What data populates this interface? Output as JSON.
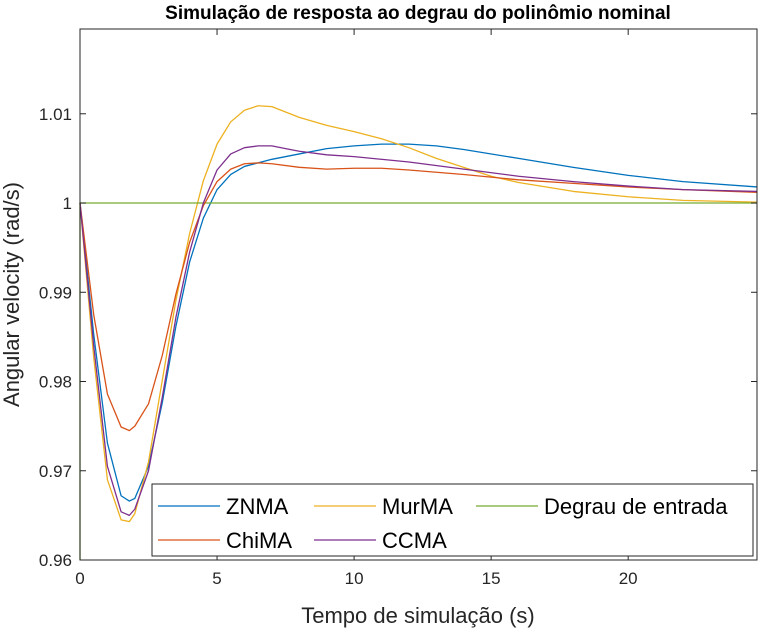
{
  "chart_data": {
    "type": "line",
    "title": "Simulação de resposta ao degrau do polinômio nominal",
    "xlabel": "Tempo de simulação (s)",
    "ylabel": "Angular velocity (rad/s)",
    "xlim": [
      0,
      24.7
    ],
    "ylim": [
      0.96,
      1.0195
    ],
    "xticks": [
      0,
      5,
      10,
      15,
      20
    ],
    "xtick_labels": [
      "0",
      "5",
      "10",
      "15",
      "20"
    ],
    "yticks": [
      0.96,
      0.97,
      0.98,
      0.99,
      1.0,
      1.01
    ],
    "ytick_labels": [
      "0.96",
      "0.97",
      "0.98",
      "0.99",
      "1",
      "1.01"
    ],
    "grid": false,
    "legend_position": "bottom-right",
    "series": [
      {
        "name": "ZNMA",
        "color": "#0072BD",
        "x": [
          0,
          0.5,
          1.0,
          1.5,
          1.8,
          2.0,
          2.5,
          3.0,
          3.5,
          4.0,
          4.5,
          5.0,
          5.5,
          6.0,
          7.0,
          8.0,
          9.0,
          10.0,
          11.0,
          12.0,
          13.0,
          14.0,
          16.0,
          18.0,
          20.0,
          22.0,
          24.7
        ],
        "y": [
          1.0,
          0.9853,
          0.9731,
          0.9672,
          0.9666,
          0.9669,
          0.9705,
          0.9776,
          0.9862,
          0.9934,
          0.9983,
          1.0015,
          1.0032,
          1.0041,
          1.0049,
          1.0055,
          1.0061,
          1.0064,
          1.0066,
          1.0066,
          1.0064,
          1.006,
          1.005,
          1.004,
          1.0031,
          1.0024,
          1.0018
        ]
      },
      {
        "name": "MurMA",
        "color": "#EDB120",
        "x": [
          0,
          0.5,
          1.0,
          1.5,
          1.8,
          2.0,
          2.5,
          3.0,
          3.5,
          4.0,
          4.5,
          5.0,
          5.5,
          6.0,
          6.5,
          7.0,
          7.5,
          8.0,
          9.0,
          10.0,
          11.0,
          12.0,
          13.0,
          14.0,
          15.0,
          16.0,
          18.0,
          20.0,
          22.0,
          24.7
        ],
        "y": [
          1.0,
          0.9827,
          0.969,
          0.9645,
          0.9643,
          0.9652,
          0.971,
          0.9801,
          0.9891,
          0.9966,
          1.0025,
          1.0066,
          1.0091,
          1.0104,
          1.0109,
          1.0108,
          1.0102,
          1.0096,
          1.0087,
          1.008,
          1.0072,
          1.0062,
          1.005,
          1.004,
          1.003,
          1.0023,
          1.0013,
          1.0007,
          1.0003,
          1.0001
        ]
      },
      {
        "name": "Degrau de entrada",
        "color": "#77AC30",
        "x": [
          0,
          0,
          24.7
        ],
        "y": [
          0.96,
          1.0,
          1.0
        ]
      },
      {
        "name": "ChiMA",
        "color": "#D95319",
        "x": [
          0,
          0.5,
          1.0,
          1.5,
          1.8,
          2.0,
          2.5,
          3.0,
          3.5,
          4.0,
          4.5,
          5.0,
          5.5,
          6.0,
          6.5,
          7.0,
          8.0,
          9.0,
          10.0,
          11.0,
          12.0,
          14.0,
          16.0,
          18.0,
          20.0,
          22.0,
          24.7
        ],
        "y": [
          1.0,
          0.9875,
          0.9786,
          0.9749,
          0.9745,
          0.975,
          0.9775,
          0.9829,
          0.9898,
          0.9956,
          0.9997,
          1.0024,
          1.0038,
          1.0044,
          1.0045,
          1.0044,
          1.004,
          1.0038,
          1.0039,
          1.0039,
          1.0037,
          1.0032,
          1.0026,
          1.0022,
          1.0018,
          1.0015,
          1.0012
        ]
      },
      {
        "name": "CCMA",
        "color": "#7E2F8E",
        "x": [
          0,
          0.5,
          1.0,
          1.5,
          1.8,
          2.0,
          2.5,
          3.0,
          3.5,
          4.0,
          4.5,
          5.0,
          5.5,
          6.0,
          6.5,
          7.0,
          7.5,
          8.0,
          9.0,
          10.0,
          12.0,
          14.0,
          16.0,
          18.0,
          20.0,
          22.0,
          24.7
        ],
        "y": [
          1.0,
          0.984,
          0.9705,
          0.9654,
          0.965,
          0.9657,
          0.97,
          0.9782,
          0.9872,
          0.9945,
          1.0,
          1.0037,
          1.0055,
          1.0062,
          1.0064,
          1.0064,
          1.0061,
          1.0058,
          1.0054,
          1.0052,
          1.0046,
          1.0038,
          1.003,
          1.0024,
          1.0019,
          1.0015,
          1.0013
        ]
      }
    ],
    "legend_rows": [
      [
        "ZNMA",
        "MurMA",
        "Degrau de entrada"
      ],
      [
        "ChiMA",
        "CCMA"
      ]
    ]
  }
}
